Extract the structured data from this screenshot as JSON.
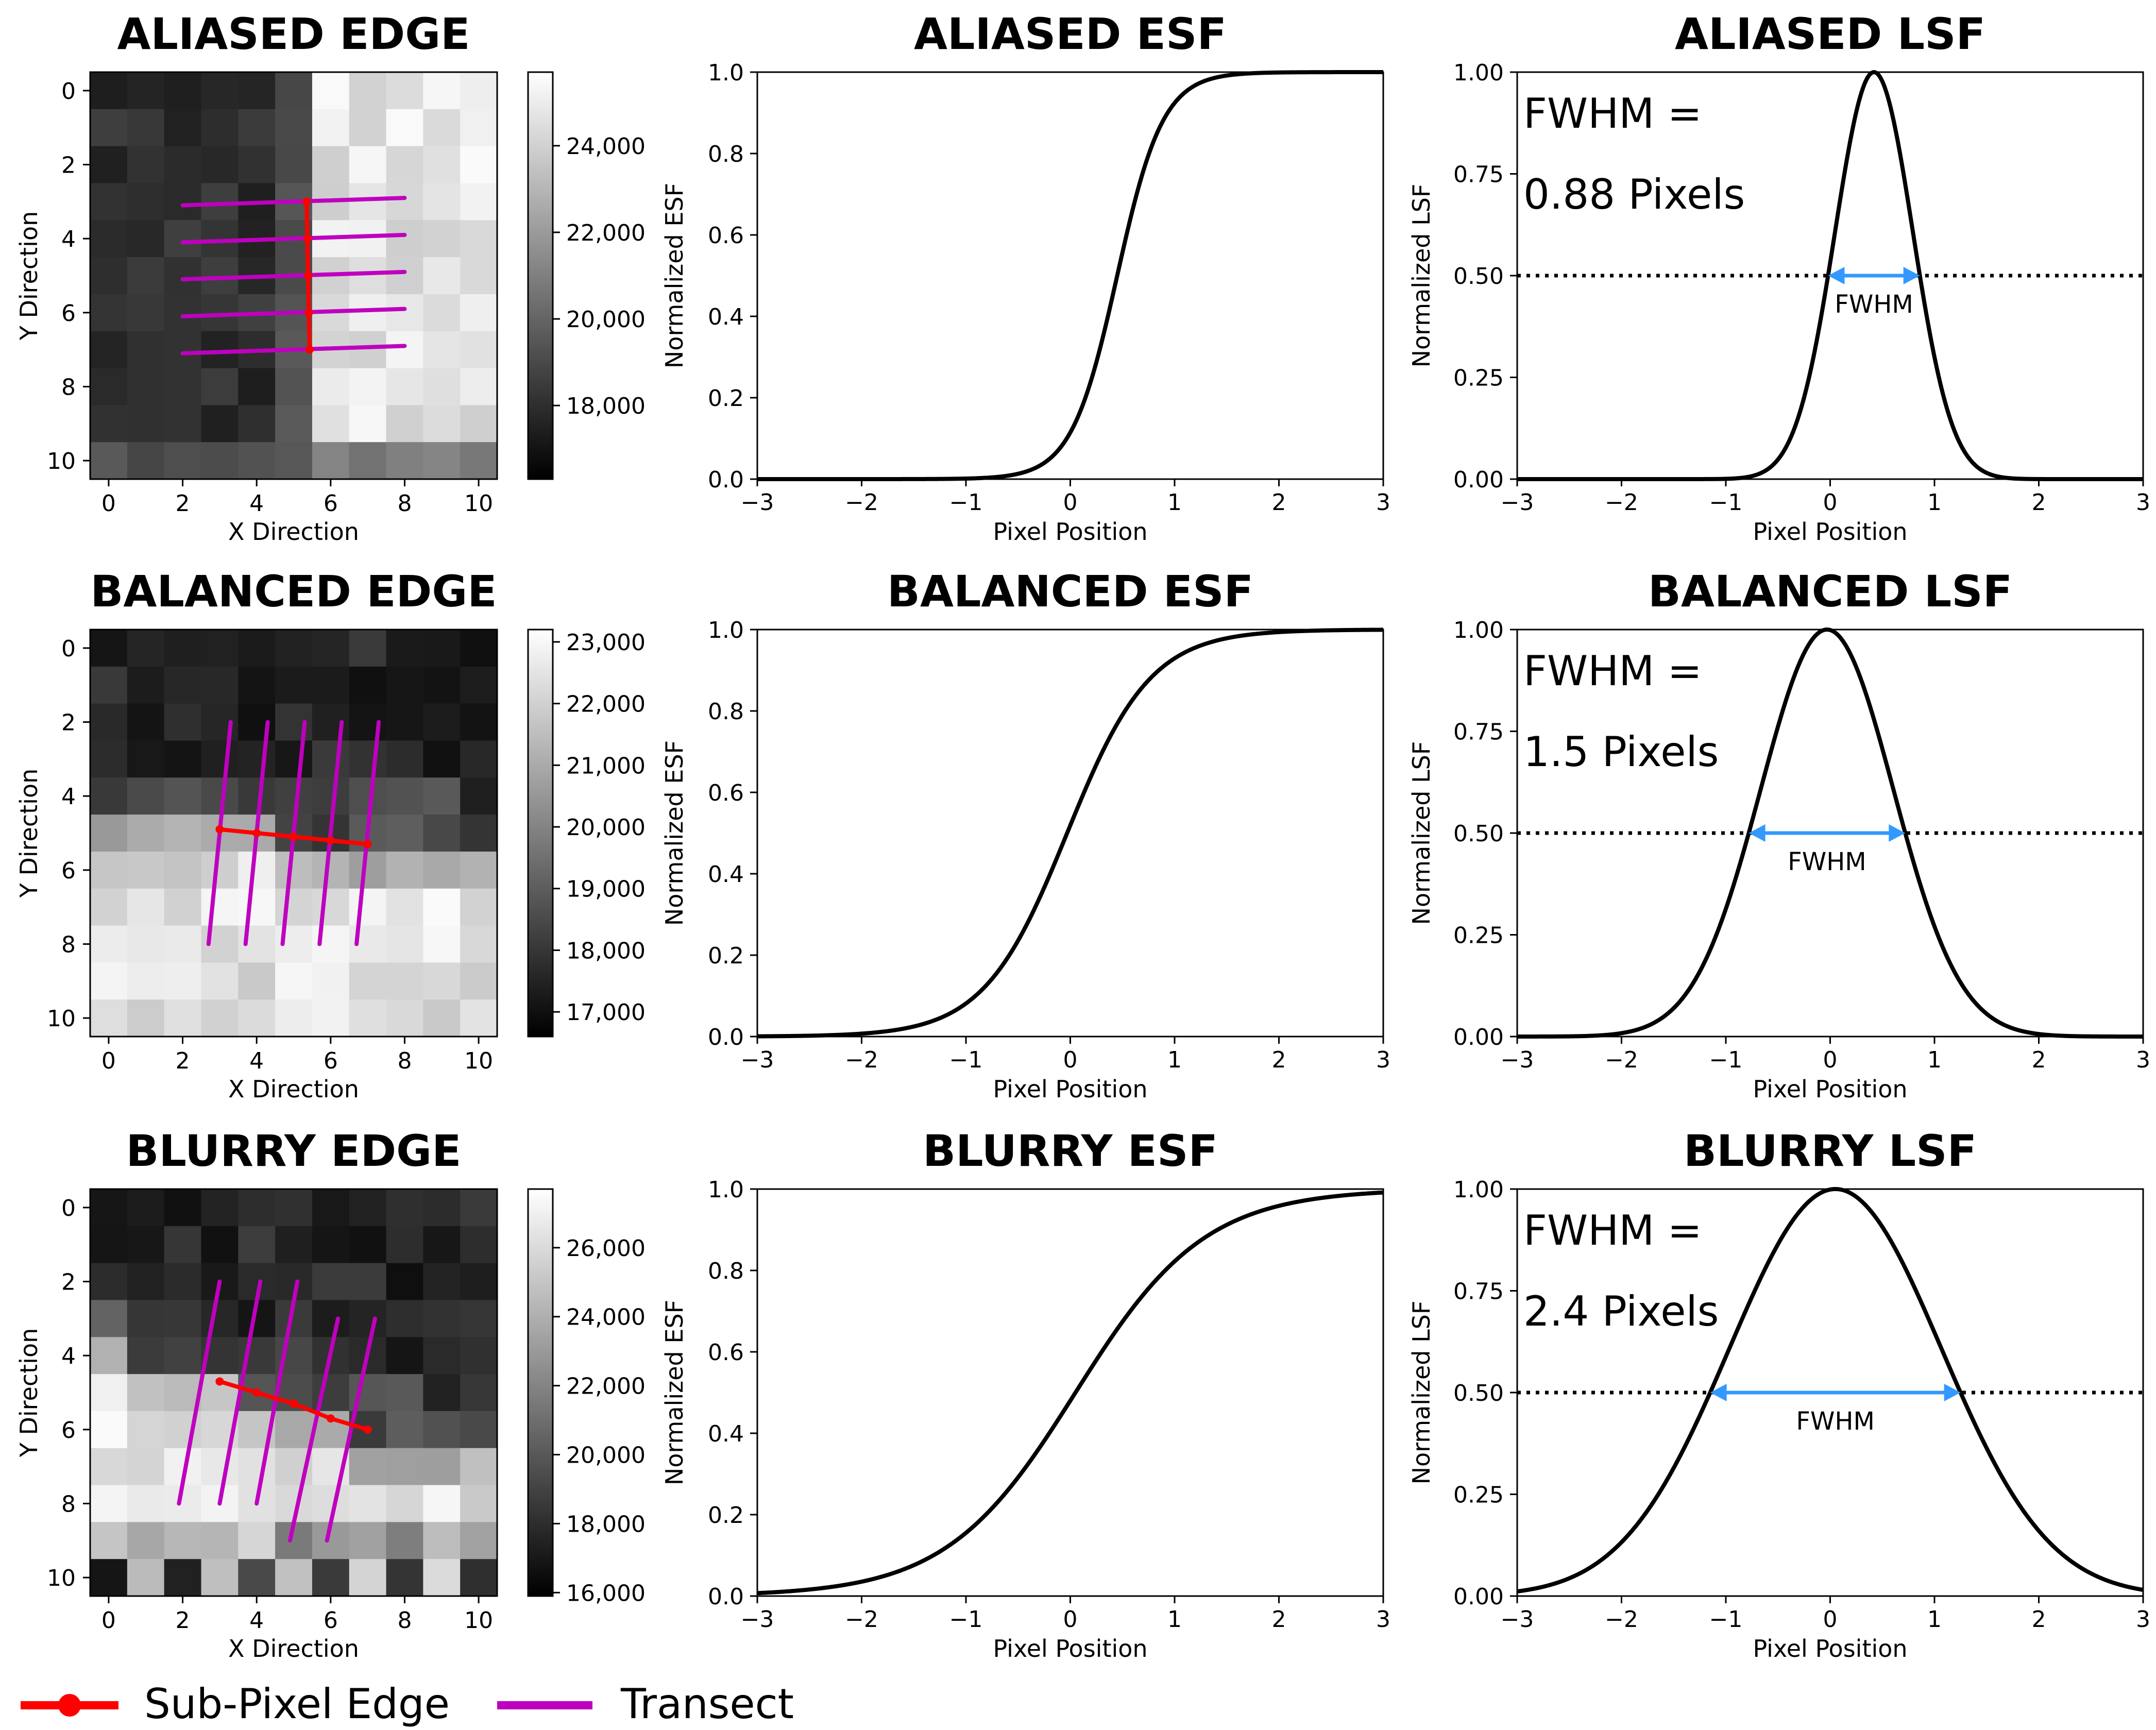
{
  "figure": {
    "legend": [
      {
        "label": "Sub-Pixel Edge",
        "color": "#ff0000",
        "marker": "circle"
      },
      {
        "label": "Transect",
        "color": "#bf00bf",
        "marker": "line"
      }
    ]
  },
  "chart_data": [
    {
      "type": "heatmap",
      "row": 0,
      "title": "ALIASED EDGE",
      "xlabel": "X Direction",
      "ylabel": "Y Direction",
      "xticks": [
        "0",
        "2",
        "4",
        "6",
        "8",
        "10"
      ],
      "yticks": [
        "0",
        "2",
        "4",
        "6",
        "8",
        "10"
      ],
      "cbar_range": [
        16300,
        25700
      ],
      "cbar_ticks": [
        {
          "v": 18000,
          "label": "18,000"
        },
        {
          "v": 20000,
          "label": "20,000"
        },
        {
          "v": 22000,
          "label": "22,000"
        },
        {
          "v": 24000,
          "label": "24,000"
        }
      ],
      "edge": {
        "orientation": "vertical",
        "x": 5.4,
        "y_start": 3,
        "y_end": 7,
        "dark_side": "left"
      },
      "transects": [
        {
          "x0": 2,
          "y0": 3.1,
          "x1": 8,
          "y1": 2.9
        },
        {
          "x0": 2,
          "y0": 4.1,
          "x1": 8,
          "y1": 3.9
        },
        {
          "x0": 2,
          "y0": 5.1,
          "x1": 8,
          "y1": 4.9
        },
        {
          "x0": 2,
          "y0": 6.1,
          "x1": 8,
          "y1": 5.9
        },
        {
          "x0": 2,
          "y0": 7.1,
          "x1": 8,
          "y1": 6.9
        }
      ],
      "subpixel_edge": [
        [
          5.35,
          3
        ],
        [
          5.37,
          4
        ],
        [
          5.39,
          5
        ],
        [
          5.41,
          6
        ],
        [
          5.43,
          7
        ]
      ]
    },
    {
      "type": "line",
      "row": 0,
      "title": "ALIASED ESF",
      "xlabel": "Pixel Position",
      "ylabel": "Normalized ESF",
      "xlim": [
        -3,
        3
      ],
      "ylim": [
        0,
        1
      ],
      "xticks": [
        "−3",
        "−2",
        "−1",
        "0",
        "1",
        "2",
        "3"
      ],
      "yticks": [
        "0.0",
        "0.2",
        "0.4",
        "0.6",
        "0.8",
        "1.0"
      ],
      "series": [
        {
          "name": "ESF",
          "model": "logistic",
          "center": 0.45,
          "scale": 0.22
        }
      ]
    },
    {
      "type": "line",
      "row": 0,
      "title": "ALIASED LSF",
      "xlabel": "Pixel Position",
      "ylabel": "Normalized LSF",
      "xlim": [
        -3,
        3
      ],
      "ylim": [
        0,
        1
      ],
      "xticks": [
        "−3",
        "−2",
        "−1",
        "0",
        "1",
        "2",
        "3"
      ],
      "yticks": [
        "0.00",
        "0.25",
        "0.50",
        "0.75",
        "1.00"
      ],
      "series": [
        {
          "name": "LSF",
          "model": "gaussian",
          "center": 0.42,
          "fwhm": 0.88
        }
      ],
      "half_max": 0.5,
      "annotation": {
        "line1": "FWHM =",
        "line2": "0.88 Pixels",
        "arrow_label": "FWHM",
        "arrow_color": "#3399ff"
      }
    },
    {
      "type": "heatmap",
      "row": 1,
      "title": "BALANCED EDGE",
      "xlabel": "X Direction",
      "ylabel": "Y Direction",
      "xticks": [
        "0",
        "2",
        "4",
        "6",
        "8",
        "10"
      ],
      "yticks": [
        "0",
        "2",
        "4",
        "6",
        "8",
        "10"
      ],
      "cbar_range": [
        16600,
        23200
      ],
      "cbar_ticks": [
        {
          "v": 17000,
          "label": "17,000"
        },
        {
          "v": 18000,
          "label": "18,000"
        },
        {
          "v": 19000,
          "label": "19,000"
        },
        {
          "v": 20000,
          "label": "20,000"
        },
        {
          "v": 21000,
          "label": "21,000"
        },
        {
          "v": 22000,
          "label": "22,000"
        },
        {
          "v": 23000,
          "label": "23,000"
        }
      ],
      "edge": {
        "orientation": "horizontal",
        "y_at_x0": 4.6,
        "slope": 0.1,
        "dark_side": "top"
      },
      "transects": [
        {
          "x0": 2.7,
          "y0": 8,
          "x1": 3.3,
          "y1": 2
        },
        {
          "x0": 3.7,
          "y0": 8,
          "x1": 4.3,
          "y1": 2
        },
        {
          "x0": 4.7,
          "y0": 8,
          "x1": 5.3,
          "y1": 2
        },
        {
          "x0": 5.7,
          "y0": 8,
          "x1": 6.3,
          "y1": 2
        },
        {
          "x0": 6.7,
          "y0": 8,
          "x1": 7.3,
          "y1": 2
        }
      ],
      "subpixel_edge": [
        [
          3,
          4.9
        ],
        [
          4,
          5.0
        ],
        [
          5,
          5.1
        ],
        [
          6,
          5.2
        ],
        [
          7,
          5.3
        ]
      ]
    },
    {
      "type": "line",
      "row": 1,
      "title": "BALANCED ESF",
      "xlabel": "Pixel Position",
      "ylabel": "Normalized ESF",
      "xlim": [
        -3,
        3
      ],
      "ylim": [
        0,
        1
      ],
      "xticks": [
        "−3",
        "−2",
        "−1",
        "0",
        "1",
        "2",
        "3"
      ],
      "yticks": [
        "0.0",
        "0.2",
        "0.4",
        "0.6",
        "0.8",
        "1.0"
      ],
      "series": [
        {
          "name": "ESF",
          "model": "logistic",
          "center": -0.03,
          "scale": 0.4
        }
      ]
    },
    {
      "type": "line",
      "row": 1,
      "title": "BALANCED LSF",
      "xlabel": "Pixel Position",
      "ylabel": "Normalized LSF",
      "xlim": [
        -3,
        3
      ],
      "ylim": [
        0,
        1
      ],
      "xticks": [
        "−3",
        "−2",
        "−1",
        "0",
        "1",
        "2",
        "3"
      ],
      "yticks": [
        "0.00",
        "0.25",
        "0.50",
        "0.75",
        "1.00"
      ],
      "series": [
        {
          "name": "LSF",
          "model": "gaussian",
          "center": -0.03,
          "fwhm": 1.5
        }
      ],
      "half_max": 0.5,
      "annotation": {
        "line1": "FWHM =",
        "line2": "1.5 Pixels",
        "arrow_label": "FWHM",
        "arrow_color": "#3399ff"
      }
    },
    {
      "type": "heatmap",
      "row": 2,
      "title": "BLURRY EDGE",
      "xlabel": "X Direction",
      "ylabel": "Y Direction",
      "xticks": [
        "0",
        "2",
        "4",
        "6",
        "8",
        "10"
      ],
      "yticks": [
        "0",
        "2",
        "4",
        "6",
        "8",
        "10"
      ],
      "cbar_range": [
        15900,
        27700
      ],
      "cbar_ticks": [
        {
          "v": 16000,
          "label": "16,000"
        },
        {
          "v": 18000,
          "label": "18,000"
        },
        {
          "v": 20000,
          "label": "20,000"
        },
        {
          "v": 22000,
          "label": "22,000"
        },
        {
          "v": 24000,
          "label": "24,000"
        },
        {
          "v": 26000,
          "label": "26,000"
        }
      ],
      "edge": {
        "orientation": "horizontal",
        "y_at_x0": 4.0,
        "slope": 0.3,
        "dark_side": "top"
      },
      "transects": [
        {
          "x0": 1.9,
          "y0": 8,
          "x1": 3.0,
          "y1": 2
        },
        {
          "x0": 3.0,
          "y0": 8,
          "x1": 4.1,
          "y1": 2
        },
        {
          "x0": 4.0,
          "y0": 8,
          "x1": 5.1,
          "y1": 2
        },
        {
          "x0": 4.9,
          "y0": 9,
          "x1": 6.2,
          "y1": 3
        },
        {
          "x0": 5.9,
          "y0": 9,
          "x1": 7.2,
          "y1": 3
        }
      ],
      "subpixel_edge": [
        [
          3,
          4.7
        ],
        [
          4,
          5.0
        ],
        [
          5,
          5.3
        ],
        [
          6,
          5.7
        ],
        [
          7,
          6.0
        ]
      ]
    },
    {
      "type": "line",
      "row": 2,
      "title": "BLURRY ESF",
      "xlabel": "Pixel Position",
      "ylabel": "Normalized ESF",
      "xlim": [
        -3,
        3
      ],
      "ylim": [
        0,
        1
      ],
      "xticks": [
        "−3",
        "−2",
        "−1",
        "0",
        "1",
        "2",
        "3"
      ],
      "yticks": [
        "0.0",
        "0.2",
        "0.4",
        "0.6",
        "0.8",
        "1.0"
      ],
      "series": [
        {
          "name": "ESF",
          "model": "logistic",
          "center": 0.05,
          "scale": 0.62
        }
      ]
    },
    {
      "type": "line",
      "row": 2,
      "title": "BLURRY LSF",
      "xlabel": "Pixel Position",
      "ylabel": "Normalized LSF",
      "xlim": [
        -3,
        3
      ],
      "ylim": [
        0,
        1
      ],
      "xticks": [
        "−3",
        "−2",
        "−1",
        "0",
        "1",
        "2",
        "3"
      ],
      "yticks": [
        "0.00",
        "0.25",
        "0.50",
        "0.75",
        "1.00"
      ],
      "series": [
        {
          "name": "LSF",
          "model": "gaussian",
          "center": 0.05,
          "fwhm": 2.4
        }
      ],
      "half_max": 0.5,
      "annotation": {
        "line1": "FWHM =",
        "line2": "2.4 Pixels",
        "arrow_label": "FWHM",
        "arrow_color": "#3399ff"
      }
    }
  ]
}
